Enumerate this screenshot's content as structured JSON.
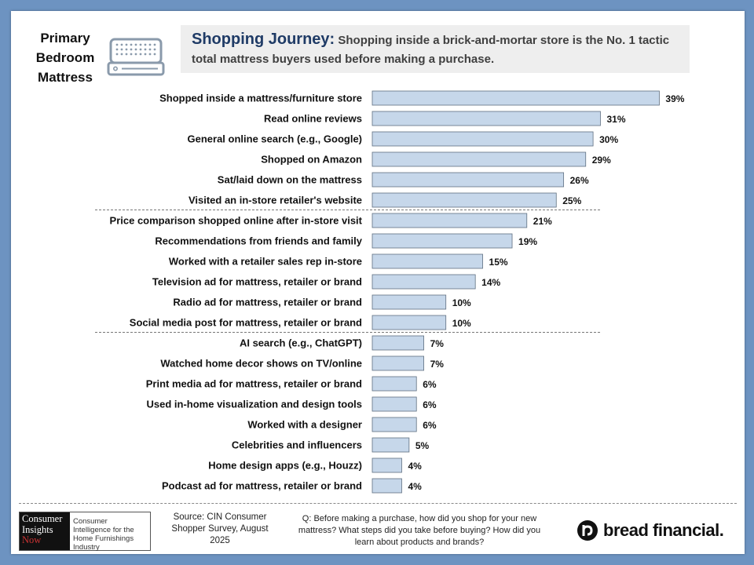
{
  "corner_title": "Primary Bedroom Mattress",
  "header": {
    "lead": "Shopping Journey:",
    "text": "Shopping inside a brick-and-mortar store is the No. 1 tactic total mattress buyers used before making a purchase."
  },
  "chart_data": {
    "type": "bar",
    "orientation": "horizontal",
    "categories": [
      "Shopped inside a mattress/furniture store",
      "Read online reviews",
      "General online search (e.g., Google)",
      "Shopped on Amazon",
      "Sat/laid down on the mattress",
      "Visited an in-store retailer's website",
      "Price comparison shopped online after in-store visit",
      "Recommendations from friends and family",
      "Worked with a retailer sales rep in-store",
      "Television ad for mattress, retailer or brand",
      "Radio ad for mattress, retailer or brand",
      "Social media post for mattress, retailer or brand",
      "AI search (e.g., ChatGPT)",
      "Watched home decor shows on TV/online",
      "Print media ad for mattress, retailer or brand",
      "Used in-home visualization and design tools",
      "Worked with a designer",
      "Celebrities and influencers",
      "Home design apps (e.g., Houzz)",
      "Podcast ad for mattress, retailer or brand"
    ],
    "values": [
      39,
      31,
      30,
      29,
      26,
      25,
      21,
      19,
      15,
      14,
      10,
      10,
      7,
      7,
      6,
      6,
      6,
      5,
      4,
      4
    ],
    "value_labels": [
      "39%",
      "31%",
      "30%",
      "29%",
      "26%",
      "25%",
      "21%",
      "19%",
      "15%",
      "14%",
      "10%",
      "10%",
      "7%",
      "7%",
      "6%",
      "6%",
      "6%",
      "5%",
      "4%",
      "4%"
    ],
    "group_breaks_after": [
      5,
      11
    ],
    "bar_color": "#c6d7ea",
    "bar_edge_color": "#5f6f80"
  },
  "footer": {
    "logo_left": [
      "Consumer",
      "Insights",
      "Now"
    ],
    "logo_right": "Consumer Intelligence for the Home Furnishings Industry",
    "source": "Source: CIN Consumer Shopper Survey, August 2025",
    "question": "Q: Before making a purchase, how did you shop for your new mattress? What steps did you take before buying? How did you learn about products and brands?",
    "brand": "bread financial."
  }
}
